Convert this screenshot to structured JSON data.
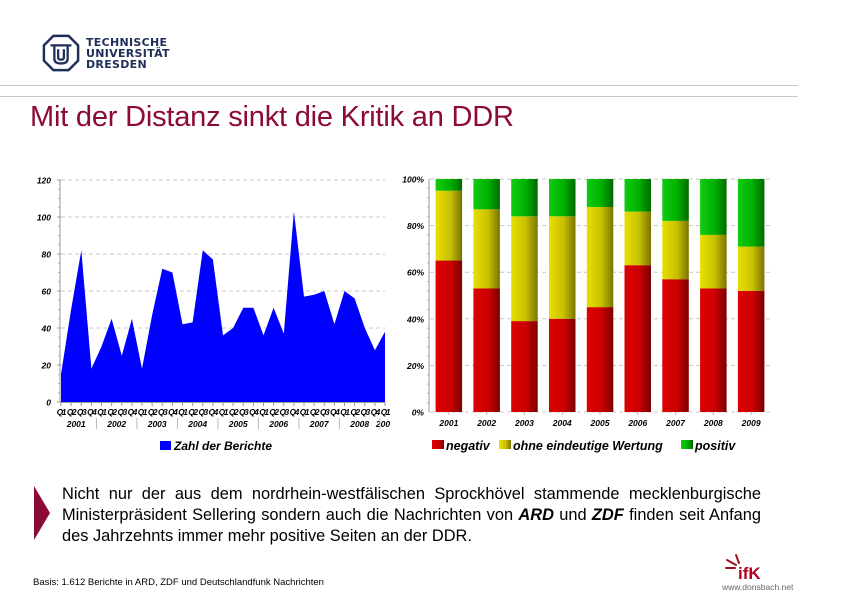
{
  "header": {
    "university_lines": [
      "TECHNISCHE",
      "UNIVERSITÄT",
      "DRESDEN"
    ],
    "title": "Mit der Distanz sinkt die Kritik an DDR"
  },
  "colors": {
    "accent": "#8b0a36",
    "area": "#0000ff",
    "negativ": "#cc0000",
    "ohne": "#cccc00",
    "positiv": "#00bb00"
  },
  "chart_data": [
    {
      "type": "area",
      "title": "",
      "xlabel": "",
      "ylabel": "",
      "ylim": [
        0,
        120
      ],
      "yticks": [
        "0",
        "20",
        "40",
        "60",
        "80",
        "100",
        "120"
      ],
      "grid": true,
      "quarter_labels": [
        "Q1",
        "Q2",
        "Q3",
        "Q4",
        "Q1",
        "Q2",
        "Q3",
        "Q4",
        "Q1",
        "Q2",
        "Q3",
        "Q4",
        "Q1",
        "Q2",
        "Q3",
        "Q4",
        "Q1",
        "Q2",
        "Q3",
        "Q4",
        "Q1",
        "Q2",
        "Q3",
        "Q4",
        "Q1",
        "Q2",
        "Q3",
        "Q4",
        "Q1",
        "Q2",
        "Q3",
        "Q4",
        "Q1"
      ],
      "year_labels": [
        "2001",
        "2002",
        "2003",
        "2004",
        "2005",
        "2006",
        "2007",
        "2008",
        "200"
      ],
      "series": [
        {
          "name": "Zahl der  Berichte",
          "values": [
            15,
            50,
            82,
            18,
            30,
            45,
            25,
            45,
            18,
            47,
            72,
            70,
            42,
            43,
            82,
            77,
            36,
            40,
            51,
            51,
            36,
            51,
            37,
            103,
            57,
            58,
            60,
            42,
            60,
            56,
            40,
            28,
            38
          ]
        }
      ],
      "legend": "bottom"
    },
    {
      "type": "bar",
      "stacked": true,
      "percent": true,
      "title": "",
      "xlabel": "",
      "ylabel": "",
      "ylim": [
        0,
        100
      ],
      "yticks": [
        "0%",
        "20%",
        "40%",
        "60%",
        "80%",
        "100%"
      ],
      "grid": true,
      "categories": [
        "2001",
        "2002",
        "2003",
        "2004",
        "2005",
        "2006",
        "2007",
        "2008",
        "2009"
      ],
      "series": [
        {
          "name": "negativ",
          "values": [
            65,
            53,
            39,
            40,
            45,
            63,
            57,
            53,
            52
          ]
        },
        {
          "name": "ohne eindeutige Wertung",
          "values": [
            30,
            34,
            45,
            44,
            43,
            23,
            25,
            23,
            19
          ]
        },
        {
          "name": "positiv",
          "values": [
            5,
            13,
            16,
            16,
            12,
            14,
            18,
            24,
            29
          ]
        }
      ],
      "legend": "bottom"
    }
  ],
  "body": {
    "part1": "Nicht nur der aus dem nordrhein-westfälischen Sprockhövel stammende mecklenburgische Ministerpräsident Sellering sondern auch die Nachrichten von ",
    "ard": "ARD",
    "part2": " und ",
    "zdf": "ZDF",
    "part3": " finden seit Anfang des Jahrzehnts immer mehr positive Seiten an der DDR."
  },
  "footer": {
    "basis": "Basis: 1.612 Berichte in ARD, ZDF und Deutschlandfunk Nachrichten",
    "brand": "ifK",
    "url": "www.donsbach.net"
  }
}
